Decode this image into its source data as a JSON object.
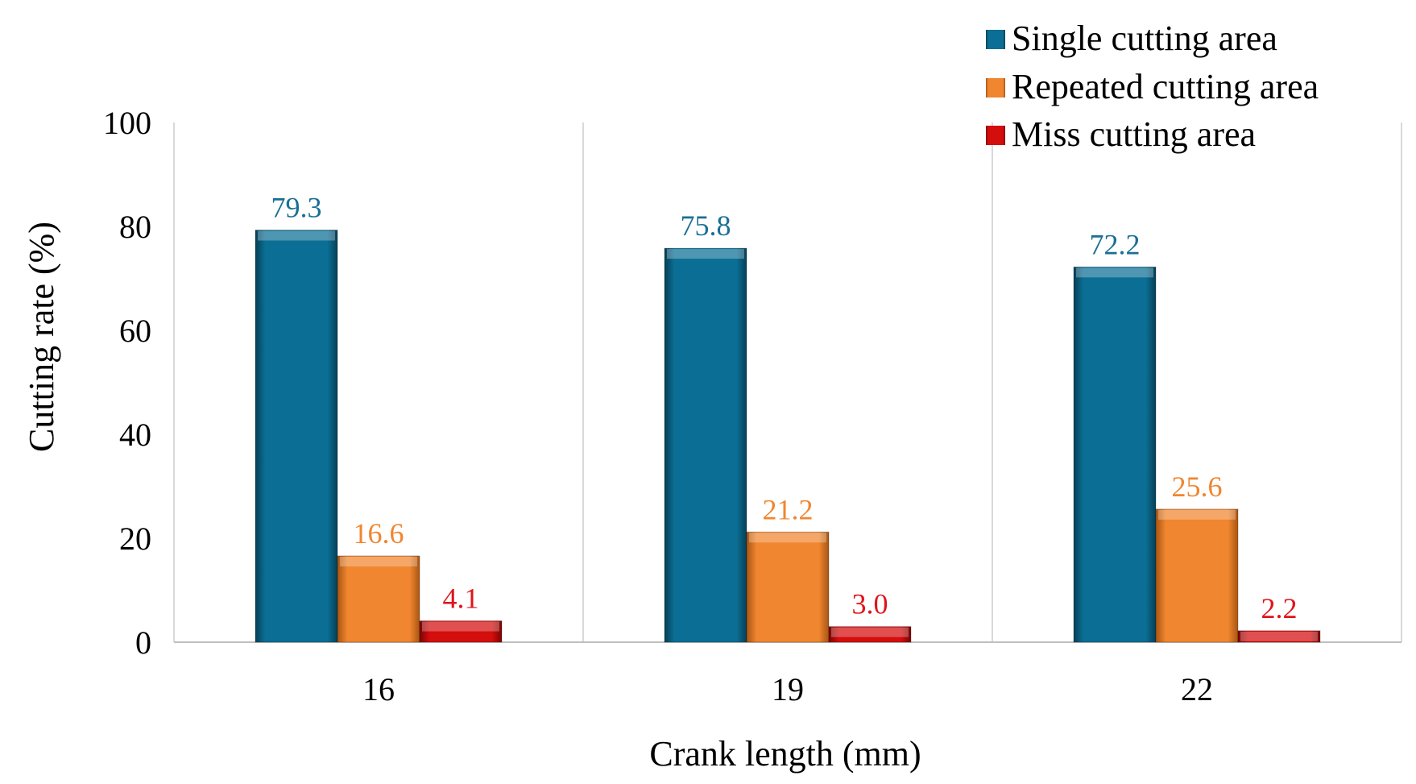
{
  "chart_data": {
    "type": "bar",
    "title": "",
    "xlabel": "Crank length (mm)",
    "ylabel": "Cutting rate (%)",
    "ylim": [
      0,
      100
    ],
    "yticks": [
      "0",
      "20",
      "40",
      "60",
      "80",
      "100"
    ],
    "categories": [
      "16",
      "19",
      "22"
    ],
    "legend_position": "top-right",
    "grid": "vertical category separators",
    "series": [
      {
        "name": "Single cutting area",
        "values": [
          79.3,
          75.8,
          72.2
        ],
        "labels": [
          "79.3",
          "75.8",
          "72.2"
        ],
        "color": "#0b6e94",
        "label_color": "#1a6f95"
      },
      {
        "name": "Repeated cutting area",
        "values": [
          16.6,
          21.2,
          25.6
        ],
        "labels": [
          "16.6",
          "21.2",
          "25.6"
        ],
        "color": "#f0862f",
        "label_color": "#f0862f"
      },
      {
        "name": "Miss cutting area",
        "values": [
          4.1,
          3.0,
          2.2
        ],
        "labels": [
          "4.1",
          "3.0",
          "2.2"
        ],
        "color": "#d40d0d",
        "label_color": "#e0141a"
      }
    ]
  }
}
